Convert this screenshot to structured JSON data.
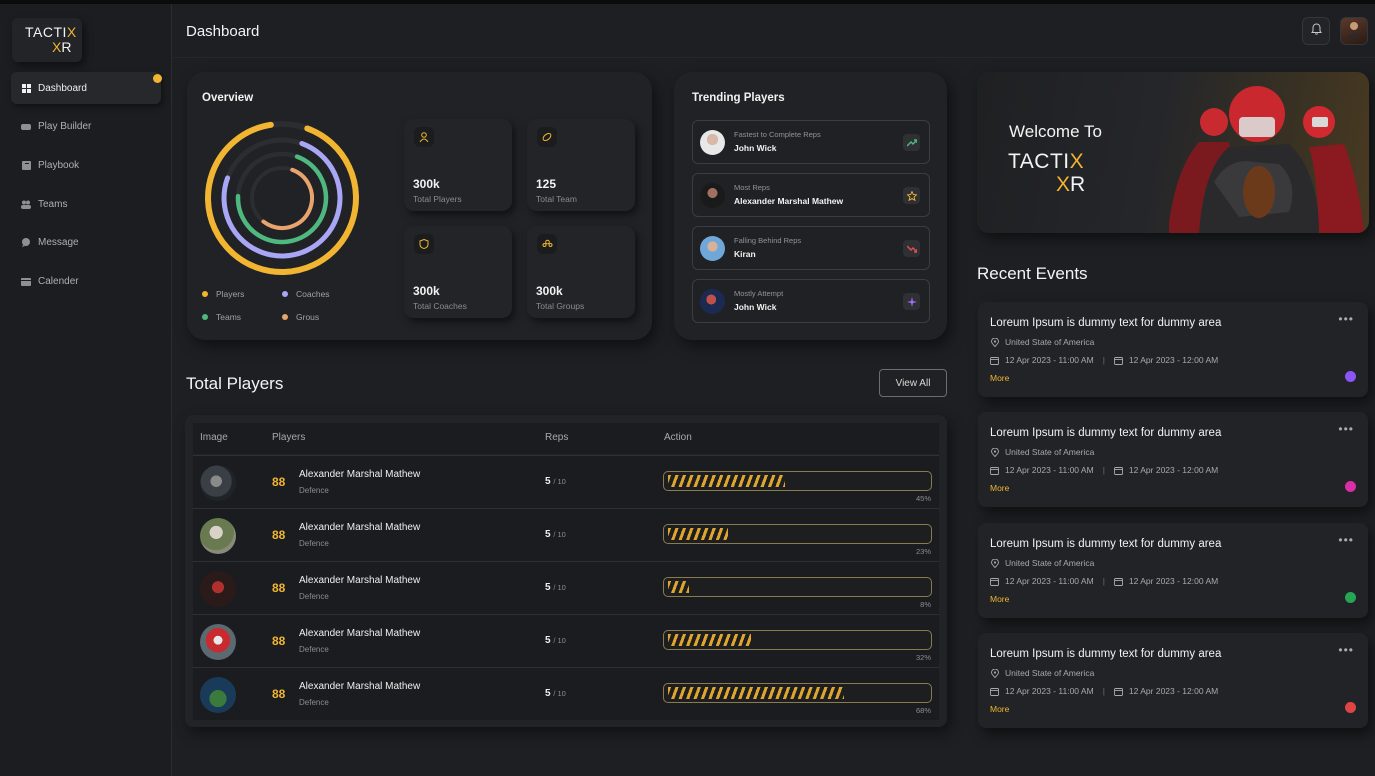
{
  "brand": {
    "line1": "TACTI",
    "x1": "X",
    "line2_x": "X",
    "line2": "R"
  },
  "sidebar": {
    "items": [
      {
        "label": "Dashboard",
        "icon": "grid-icon"
      },
      {
        "label": "Play Builder",
        "icon": "gamepad-icon"
      },
      {
        "label": "Playbook",
        "icon": "book-icon"
      },
      {
        "label": "Teams",
        "icon": "users-icon"
      },
      {
        "label": "Message",
        "icon": "chat-icon"
      },
      {
        "label": "Calender",
        "icon": "calendar-icon"
      }
    ]
  },
  "header": {
    "title": "Dashboard"
  },
  "overview": {
    "title": "Overview",
    "legend": [
      {
        "label": "Players",
        "color": "#f2b531"
      },
      {
        "label": "Coaches",
        "color": "#a8a6f5"
      },
      {
        "label": "Teams",
        "color": "#4fb87e"
      },
      {
        "label": "Grous",
        "color": "#e9a46d"
      }
    ],
    "stats": [
      {
        "value": "300k",
        "label": "Total Players",
        "icon": "user-icon"
      },
      {
        "value": "125",
        "label": "Total Team",
        "icon": "football-icon"
      },
      {
        "value": "300k",
        "label": "Total Coaches",
        "icon": "badge-icon"
      },
      {
        "value": "300k",
        "label": "Total Groups",
        "icon": "group-icon"
      }
    ],
    "ring_fractions": [
      0.92,
      0.75,
      0.7,
      0.55
    ]
  },
  "trending": {
    "title": "Trending Players",
    "items": [
      {
        "sub": "Fastest to Complete Reps",
        "name": "John Wick",
        "badge": "trend-up-icon",
        "badge_color": "#4fb87e"
      },
      {
        "sub": "Most Reps",
        "name": "Alexander Marshal Mathew",
        "badge": "star-icon",
        "badge_color": "#f2b531"
      },
      {
        "sub": "Falling Behind Reps",
        "name": "Kiran",
        "badge": "trend-down-icon",
        "badge_color": "#e0504a"
      },
      {
        "sub": "Mostly Attempt",
        "name": "John Wick",
        "badge": "sparkle-icon",
        "badge_color": "#9b6cf5"
      }
    ]
  },
  "welcome": {
    "title": "Welcome To",
    "brand1": "TACTI",
    "brandx": "X",
    "brand2x": "X",
    "brand2": "R"
  },
  "total_players": {
    "title": "Total Players",
    "view_all": "View All",
    "columns": [
      "Image",
      "Players",
      "Reps",
      "Action"
    ],
    "rows": [
      {
        "number": "88",
        "name": "Alexander Marshal Mathew",
        "role": "Defence",
        "reps": "5",
        "reps_total": "/ 10",
        "progress": 0.45,
        "pct": "45%"
      },
      {
        "number": "88",
        "name": "Alexander Marshal Mathew",
        "role": "Defence",
        "reps": "5",
        "reps_total": "/ 10",
        "progress": 0.23,
        "pct": "23%"
      },
      {
        "number": "88",
        "name": "Alexander Marshal Mathew",
        "role": "Defence",
        "reps": "5",
        "reps_total": "/ 10",
        "progress": 0.08,
        "pct": "8%"
      },
      {
        "number": "88",
        "name": "Alexander Marshal Mathew",
        "role": "Defence",
        "reps": "5",
        "reps_total": "/ 10",
        "progress": 0.32,
        "pct": "32%"
      },
      {
        "number": "88",
        "name": "Alexander Marshal Mathew",
        "role": "Defence",
        "reps": "5",
        "reps_total": "/ 10",
        "progress": 0.68,
        "pct": "68%"
      }
    ]
  },
  "recent_events": {
    "title": "Recent Events",
    "items": [
      {
        "title": "Loreum Ipsum is dummy text for dummy area",
        "location": "United State of America",
        "start": "12 Apr 2023 - 11:00 AM",
        "end": "12 Apr 2023 - 12:00 AM",
        "more": "More",
        "color": "#8b55f5"
      },
      {
        "title": "Loreum Ipsum is dummy text for dummy area",
        "location": "United State of America",
        "start": "12 Apr 2023 - 11:00 AM",
        "end": "12 Apr 2023 - 12:00 AM",
        "more": "More",
        "color": "#d92ea8"
      },
      {
        "title": "Loreum Ipsum is dummy text for dummy area",
        "location": "United State of America",
        "start": "12 Apr 2023 - 11:00 AM",
        "end": "12 Apr 2023 - 12:00 AM",
        "more": "More",
        "color": "#27a556"
      },
      {
        "title": "Loreum Ipsum is dummy text for dummy area",
        "location": "United State of America",
        "start": "12 Apr 2023 - 11:00 AM",
        "end": "12 Apr 2023 - 12:00 AM",
        "more": "More",
        "color": "#e04545"
      }
    ]
  }
}
